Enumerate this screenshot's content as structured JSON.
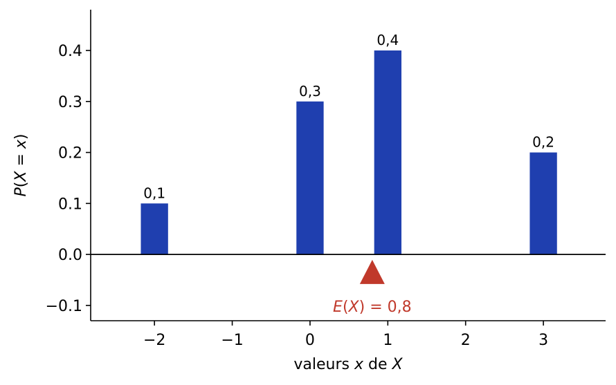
{
  "chart_data": {
    "type": "bar",
    "x": [
      -2,
      0,
      1,
      3
    ],
    "values": [
      0.1,
      0.3,
      0.4,
      0.2
    ],
    "data_labels": [
      "0,1",
      "0,3",
      "0,4",
      "0,2"
    ],
    "xlim": [
      -2.82,
      3.8
    ],
    "ylim": [
      -0.13,
      0.48
    ],
    "xticks": [
      -2,
      -1,
      0,
      1,
      2,
      3
    ],
    "xtick_labels": [
      "−2",
      "−1",
      "0",
      "1",
      "2",
      "3"
    ],
    "yticks": [
      -0.1,
      0.0,
      0.1,
      0.2,
      0.3,
      0.4
    ],
    "ytick_labels": [
      "−0.1",
      "0.0",
      "0.1",
      "0.2",
      "0.3",
      "0.4"
    ],
    "xlabel": {
      "pre": "valeurs ",
      "var1": "x",
      "mid": " de ",
      "var2": "X"
    },
    "ylabel": {
      "p": "P",
      "open": "(",
      "X": "X",
      "eq": " = ",
      "x": "x",
      "close": ")"
    },
    "bar_width": 0.35,
    "expectation": {
      "value": 0.8,
      "marker_y": -0.035,
      "label_E": "E",
      "label_open": "(",
      "label_X": "X",
      "label_rest": ") = 0,8"
    },
    "grid": false,
    "colors": {
      "bars": "#1f3faf",
      "expectation": "#c0392b",
      "axis": "#000000"
    }
  }
}
